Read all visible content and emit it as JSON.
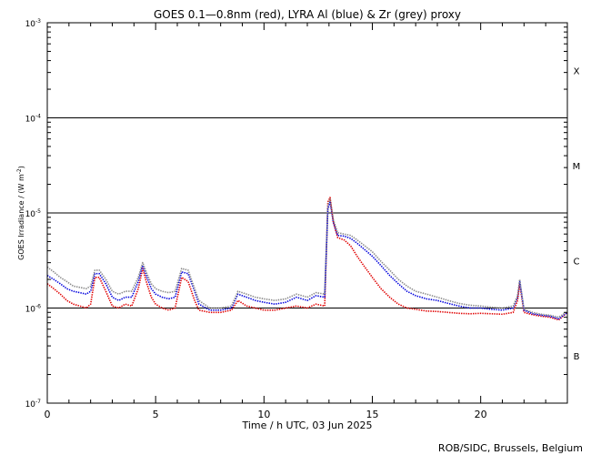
{
  "chart_data": {
    "type": "line",
    "title": "GOES 0.1—0.8nm (red), LYRA Al (blue) & Zr (grey) proxy",
    "xlabel": "Time / h UTC, 03 Jun 2025",
    "ylabel": "GOES Irradiance / (W m",
    "ylabel_exp": "-2",
    "ylabel_close": ")",
    "credit": "ROB/SIDC, Brussels, Belgium",
    "x_scale": "linear",
    "y_scale": "log",
    "xlim": [
      0,
      24
    ],
    "ylim": [
      1e-07,
      0.001
    ],
    "x_ticks": [
      {
        "value": 0,
        "label": "0"
      },
      {
        "value": 5,
        "label": "5"
      },
      {
        "value": 10,
        "label": "10"
      },
      {
        "value": 15,
        "label": "15"
      },
      {
        "value": 20,
        "label": "20"
      }
    ],
    "y_ticks": [
      {
        "value": 1e-07,
        "base": "10",
        "exp": "-7"
      },
      {
        "value": 1e-06,
        "base": "10",
        "exp": "-6"
      },
      {
        "value": 1e-05,
        "base": "10",
        "exp": "-5"
      },
      {
        "value": 0.0001,
        "base": "10",
        "exp": "-4"
      },
      {
        "value": 0.001,
        "base": "10",
        "exp": "-3"
      }
    ],
    "reference_lines": [
      1e-06,
      1e-05,
      0.0001
    ],
    "flare_classes": [
      {
        "label": "X",
        "value": 0.000316
      },
      {
        "label": "M",
        "value": 3.16e-05
      },
      {
        "label": "C",
        "value": 3.16e-06
      },
      {
        "label": "B",
        "value": 3.16e-07
      }
    ],
    "series": [
      {
        "color": "#e00000",
        "x": [
          0,
          0.3,
          0.6,
          0.9,
          1.2,
          1.5,
          1.8,
          2.0,
          2.2,
          2.4,
          2.7,
          3.0,
          3.3,
          3.6,
          3.9,
          4.2,
          4.4,
          4.6,
          4.8,
          5.0,
          5.3,
          5.6,
          5.9,
          6.2,
          6.5,
          6.8,
          7.0,
          7.5,
          8.0,
          8.5,
          8.8,
          9.2,
          9.6,
          10.0,
          10.5,
          11.0,
          11.5,
          12.0,
          12.4,
          12.8,
          12.95,
          13.05,
          13.2,
          13.4,
          13.7,
          14.0,
          14.3,
          14.6,
          15.0,
          15.4,
          15.8,
          16.2,
          16.6,
          17.0,
          17.5,
          18.0,
          18.5,
          19.0,
          19.5,
          20.0,
          20.5,
          21.0,
          21.5,
          21.7,
          21.8,
          22.0,
          22.4,
          22.8,
          23.2,
          23.6,
          24.0
        ],
        "y": [
          1.8e-06,
          1.6e-06,
          1.4e-06,
          1.2e-06,
          1.1e-06,
          1.05e-06,
          1e-06,
          1.1e-06,
          2.1e-06,
          2.1e-06,
          1.5e-06,
          1.05e-06,
          1e-06,
          1.1e-06,
          1.05e-06,
          1.6e-06,
          2.6e-06,
          1.8e-06,
          1.3e-06,
          1.1e-06,
          1e-06,
          9.5e-07,
          1e-06,
          2.1e-06,
          1.9e-06,
          1.2e-06,
          9.5e-07,
          9e-07,
          9e-07,
          9.5e-07,
          1.2e-06,
          1.05e-06,
          1e-06,
          9.5e-07,
          9.5e-07,
          1e-06,
          1.05e-06,
          1e-06,
          1.1e-06,
          1.05e-06,
          1.3e-05,
          1.45e-05,
          8e-06,
          5.5e-06,
          5.2e-06,
          4.5e-06,
          3.5e-06,
          2.8e-06,
          2.1e-06,
          1.6e-06,
          1.3e-06,
          1.1e-06,
          1e-06,
          9.7e-07,
          9.3e-07,
          9.2e-07,
          9e-07,
          8.8e-07,
          8.7e-07,
          8.8e-07,
          8.7e-07,
          8.6e-07,
          9e-07,
          1.2e-06,
          1.8e-06,
          9e-07,
          8.5e-07,
          8.2e-07,
          8e-07,
          7.5e-07,
          9e-07
        ]
      },
      {
        "color": "#0000dd",
        "x": [
          0,
          0.3,
          0.6,
          0.9,
          1.2,
          1.5,
          1.8,
          2.0,
          2.2,
          2.4,
          2.7,
          3.0,
          3.3,
          3.6,
          3.9,
          4.2,
          4.4,
          4.6,
          4.8,
          5.0,
          5.3,
          5.6,
          5.9,
          6.2,
          6.5,
          6.8,
          7.0,
          7.5,
          8.0,
          8.5,
          8.8,
          9.2,
          9.6,
          10.0,
          10.5,
          11.0,
          11.5,
          12.0,
          12.4,
          12.8,
          12.95,
          13.05,
          13.2,
          13.4,
          13.7,
          14.0,
          14.3,
          14.6,
          15.0,
          15.4,
          15.8,
          16.2,
          16.6,
          17.0,
          17.5,
          18.0,
          18.5,
          19.0,
          19.5,
          20.0,
          20.5,
          21.0,
          21.5,
          21.7,
          21.8,
          22.0,
          22.4,
          22.8,
          23.2,
          23.6,
          24.0
        ],
        "y": [
          2.2e-06,
          2e-06,
          1.8e-06,
          1.6e-06,
          1.5e-06,
          1.45e-06,
          1.4e-06,
          1.5e-06,
          2.3e-06,
          2.3e-06,
          1.8e-06,
          1.3e-06,
          1.2e-06,
          1.3e-06,
          1.3e-06,
          1.9e-06,
          2.8e-06,
          2.1e-06,
          1.6e-06,
          1.4e-06,
          1.3e-06,
          1.25e-06,
          1.3e-06,
          2.4e-06,
          2.3e-06,
          1.5e-06,
          1.1e-06,
          9.5e-07,
          9.5e-07,
          1e-06,
          1.4e-06,
          1.3e-06,
          1.2e-06,
          1.15e-06,
          1.1e-06,
          1.15e-06,
          1.3e-06,
          1.2e-06,
          1.35e-06,
          1.3e-06,
          1.1e-05,
          1.3e-05,
          8e-06,
          5.8e-06,
          5.7e-06,
          5.4e-06,
          4.8e-06,
          4.2e-06,
          3.5e-06,
          2.8e-06,
          2.2e-06,
          1.8e-06,
          1.5e-06,
          1.35e-06,
          1.25e-06,
          1.2e-06,
          1.12e-06,
          1.05e-06,
          1e-06,
          1e-06,
          9.7e-07,
          9.5e-07,
          1e-06,
          1.3e-06,
          1.9e-06,
          9.5e-07,
          8.7e-07,
          8.4e-07,
          8.2e-07,
          7.7e-07,
          9e-07
        ]
      },
      {
        "color": "#888888",
        "x": [
          0,
          0.3,
          0.6,
          0.9,
          1.2,
          1.5,
          1.8,
          2.0,
          2.2,
          2.4,
          2.7,
          3.0,
          3.3,
          3.6,
          3.9,
          4.2,
          4.4,
          4.6,
          4.8,
          5.0,
          5.3,
          5.6,
          5.9,
          6.2,
          6.5,
          6.8,
          7.0,
          7.5,
          8.0,
          8.5,
          8.8,
          9.2,
          9.6,
          10.0,
          10.5,
          11.0,
          11.5,
          12.0,
          12.4,
          12.8,
          12.95,
          13.05,
          13.2,
          13.4,
          13.7,
          14.0,
          14.3,
          14.6,
          15.0,
          15.4,
          15.8,
          16.2,
          16.6,
          17.0,
          17.5,
          18.0,
          18.5,
          19.0,
          19.5,
          20.0,
          20.5,
          21.0,
          21.5,
          21.7,
          21.8,
          22.0,
          22.4,
          22.8,
          23.2,
          23.6,
          24.0
        ],
        "y": [
          2.7e-06,
          2.4e-06,
          2.1e-06,
          1.9e-06,
          1.7e-06,
          1.65e-06,
          1.6e-06,
          1.7e-06,
          2.5e-06,
          2.5e-06,
          2e-06,
          1.5e-06,
          1.4e-06,
          1.5e-06,
          1.5e-06,
          2.1e-06,
          3e-06,
          2.3e-06,
          1.8e-06,
          1.6e-06,
          1.5e-06,
          1.45e-06,
          1.5e-06,
          2.6e-06,
          2.5e-06,
          1.6e-06,
          1.2e-06,
          1e-06,
          1e-06,
          1.05e-06,
          1.5e-06,
          1.4e-06,
          1.3e-06,
          1.25e-06,
          1.2e-06,
          1.25e-06,
          1.4e-06,
          1.3e-06,
          1.45e-06,
          1.4e-06,
          1.2e-05,
          1.4e-05,
          8.5e-06,
          6.2e-06,
          6e-06,
          5.8e-06,
          5.2e-06,
          4.6e-06,
          3.9e-06,
          3.1e-06,
          2.5e-06,
          2e-06,
          1.7e-06,
          1.5e-06,
          1.4e-06,
          1.3e-06,
          1.2e-06,
          1.12e-06,
          1.07e-06,
          1.05e-06,
          1.02e-06,
          1e-06,
          1.05e-06,
          1.35e-06,
          2e-06,
          9.7e-07,
          9e-07,
          8.6e-07,
          8.4e-07,
          8e-07,
          9.2e-07
        ]
      }
    ]
  }
}
